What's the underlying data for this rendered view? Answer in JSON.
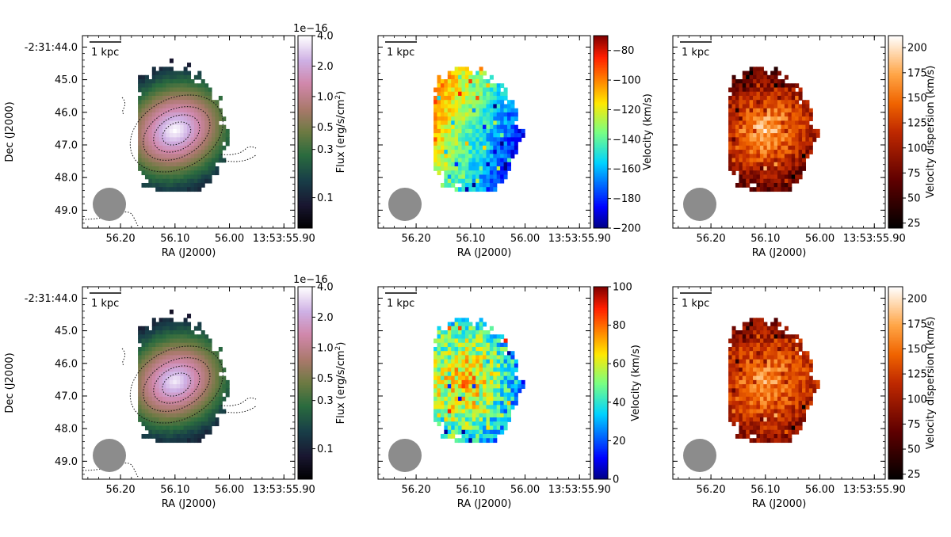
{
  "figure": {
    "scale_bar_label": "1 kpc",
    "ra_label": "RA (J2000)",
    "dec_label": "Dec (J2000)",
    "ra_ticks": [
      "56.20",
      "56.10",
      "56.00",
      "13:53:55.90"
    ],
    "dec_ticks": [
      "-2:31:44.0",
      "45.0",
      "46.0",
      "47.0",
      "48.0",
      "49.0"
    ],
    "beam_color": "#8c8c8c"
  },
  "chart_data": [
    {
      "type": "heatmap",
      "panel": "top-left",
      "quantity": "flux",
      "colormap": "cubehelix",
      "colorbar": {
        "label": "Flux (erg/s/cm$^2$)",
        "label_text": "Flux (erg/s/cm",
        "label_sup": "2",
        "label_end": ")",
        "scale": "log",
        "range": [
          0.05,
          4.0
        ],
        "ticks": [
          0.1,
          0.3,
          0.5,
          1.0,
          2.0,
          4.0
        ],
        "tick_labels": [
          "0.1",
          "0.3",
          "0.5",
          "1.0",
          "2.0",
          "4.0"
        ],
        "offset_text": "1e−16"
      },
      "map": {
        "center": [
          56.1,
          46.6
        ],
        "peak": 4.0
      }
    },
    {
      "type": "heatmap",
      "panel": "top-middle",
      "quantity": "velocity",
      "colormap": "jet",
      "colorbar": {
        "label": "Velocity (km/s)",
        "range": [
          -200,
          -70
        ],
        "ticks": [
          -200,
          -180,
          -160,
          -140,
          -120,
          -100,
          -80
        ],
        "tick_labels": [
          "−200",
          "−180",
          "−160",
          "−140",
          "−120",
          "−100",
          "−80"
        ]
      },
      "map": {
        "range_in_map": [
          -195,
          -85
        ],
        "gradient": "red at east, blue at west"
      }
    },
    {
      "type": "heatmap",
      "panel": "top-right",
      "quantity": "velocity dispersion",
      "colormap": "gist_heat",
      "colorbar": {
        "label": "Velocity dispersion (km/s)",
        "range": [
          20,
          212
        ],
        "ticks": [
          25,
          50,
          75,
          100,
          125,
          150,
          175,
          200
        ],
        "tick_labels": [
          "25",
          "50",
          "75",
          "100",
          "125",
          "150",
          "175",
          "200"
        ]
      },
      "map": {
        "range_in_map": [
          30,
          212
        ],
        "peak_location": "center"
      }
    },
    {
      "type": "heatmap",
      "panel": "bottom-left",
      "quantity": "flux",
      "colormap": "cubehelix",
      "colorbar": {
        "label": "Flux (erg/s/cm$^2$)",
        "label_text": "Flux (erg/s/cm",
        "label_sup": "2",
        "label_end": ")",
        "scale": "log",
        "range": [
          0.05,
          4.0
        ],
        "ticks": [
          0.1,
          0.3,
          0.5,
          1.0,
          2.0,
          4.0
        ],
        "tick_labels": [
          "0.1",
          "0.3",
          "0.5",
          "1.0",
          "2.0",
          "4.0"
        ],
        "offset_text": "1e−16"
      },
      "map": {
        "center": [
          56.1,
          46.6
        ],
        "peak": 3.5
      }
    },
    {
      "type": "heatmap",
      "panel": "bottom-middle",
      "quantity": "velocity",
      "colormap": "jet",
      "colorbar": {
        "label": "Velocity (km/s)",
        "range": [
          0,
          100
        ],
        "ticks": [
          0,
          20,
          40,
          60,
          80,
          100
        ],
        "tick_labels": [
          "0",
          "20",
          "40",
          "60",
          "80",
          "100"
        ]
      },
      "map": {
        "range_in_map": [
          5,
          90
        ],
        "gradient": "red at center, blue at west edge"
      }
    },
    {
      "type": "heatmap",
      "panel": "bottom-right",
      "quantity": "velocity dispersion",
      "colormap": "gist_heat",
      "colorbar": {
        "label": "Velocity dispersion (km/s)",
        "range": [
          20,
          212
        ],
        "ticks": [
          25,
          50,
          75,
          100,
          125,
          150,
          175,
          200
        ],
        "tick_labels": [
          "25",
          "50",
          "75",
          "100",
          "125",
          "150",
          "175",
          "200"
        ]
      },
      "map": {
        "range_in_map": [
          60,
          212
        ],
        "peak_location": "center"
      }
    }
  ]
}
